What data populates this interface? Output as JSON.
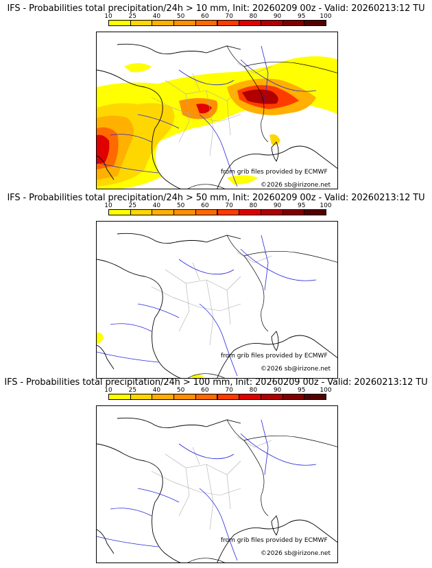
{
  "panels": [
    {
      "title": "IFS - Probabilities total precipitation/24h > 10 mm, Init: 20260209 00z - Valid: 20260213:12 TU",
      "threshold_mm": 10,
      "source_credit": "from grib files provided by ECMWF",
      "copyright": "©2026 sb@irizone.net"
    },
    {
      "title": "IFS - Probabilities total precipitation/24h > 50 mm, Init: 20260209 00z - Valid: 20260213:12 TU",
      "threshold_mm": 50,
      "source_credit": "from grib files provided by ECMWF",
      "copyright": "©2026 sb@irizone.net"
    },
    {
      "title": "IFS - Probabilities total precipitation/24h > 100 mm, Init: 20260209 00z - Valid: 20260213:12 TU",
      "threshold_mm": 100,
      "source_credit": "from grib files provided by ECMWF",
      "copyright": "©2026 sb@irizone.net"
    }
  ],
  "colorbar": {
    "ticks": [
      "10",
      "25",
      "40",
      "50",
      "60",
      "70",
      "80",
      "90",
      "95",
      "100"
    ],
    "colors": [
      "#ffff00",
      "#ffd700",
      "#ffb000",
      "#ff9000",
      "#ff6a00",
      "#ff3c00",
      "#e00000",
      "#b00000",
      "#800000",
      "#550000"
    ]
  },
  "map_colors": {
    "coastline": "#000000",
    "rivers": "#2222dd",
    "regions": "#aaaaaa"
  }
}
